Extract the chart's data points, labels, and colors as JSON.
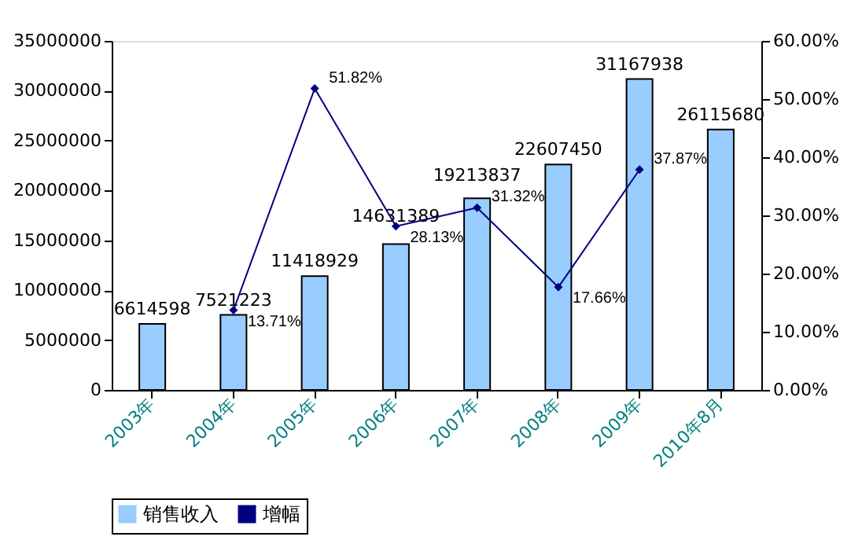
{
  "chart_data": {
    "type": "bar",
    "categories": [
      "2003年",
      "2004年",
      "2005年",
      "2006年",
      "2007年",
      "2008年",
      "2009年",
      "2010年8月"
    ],
    "series": [
      {
        "name": "销售收入",
        "type": "bar",
        "color": "#99ccff",
        "values": [
          6614598,
          7521223,
          11418929,
          14631389,
          19213837,
          22607450,
          31167938,
          26115680
        ]
      },
      {
        "name": "增幅",
        "type": "line",
        "axis": "y2",
        "color": "#000080",
        "marker": "diamond",
        "values": [
          null,
          13.71,
          51.82,
          28.13,
          31.32,
          17.66,
          37.87,
          null
        ],
        "value_labels": [
          null,
          "13.71%",
          "51.82%",
          "28.13%",
          "31.32%",
          "17.66%",
          "37.87%",
          null
        ]
      }
    ],
    "ylim": [
      0,
      35000000
    ],
    "yticks": [
      0,
      5000000,
      10000000,
      15000000,
      20000000,
      25000000,
      30000000,
      35000000
    ],
    "y2lim": [
      0,
      60
    ],
    "y2ticks": [
      {
        "value": 0,
        "label": "0.00%"
      },
      {
        "value": 10,
        "label": "10.00%"
      },
      {
        "value": 20,
        "label": "20.00%"
      },
      {
        "value": 30,
        "label": "30.00%"
      },
      {
        "value": 40,
        "label": "40.00%"
      },
      {
        "value": 50,
        "label": "50.00%"
      },
      {
        "value": 60,
        "label": "60.00%"
      }
    ],
    "data_labels": true,
    "grid": false,
    "legend": "bottom"
  }
}
